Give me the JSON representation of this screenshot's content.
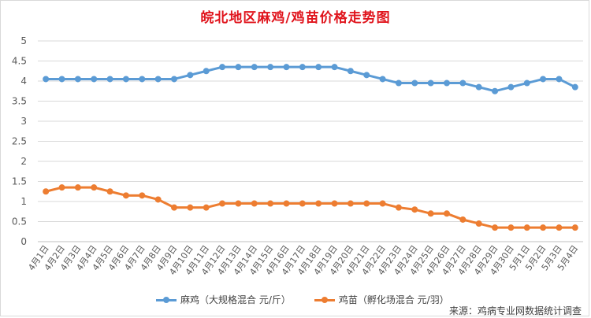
{
  "chart_data": {
    "type": "line",
    "title": "皖北地区麻鸡/鸡苗价格走势图",
    "categories": [
      "4月1日",
      "4月2日",
      "4月3日",
      "4月4日",
      "4月5日",
      "4月6日",
      "4月7日",
      "4月8日",
      "4月9日",
      "4月10日",
      "4月11日",
      "4月12日",
      "4月13日",
      "4月14日",
      "4月15日",
      "4月16日",
      "4月17日",
      "4月18日",
      "4月19日",
      "4月20日",
      "4月21日",
      "4月22日",
      "4月23日",
      "4月24日",
      "4月25日",
      "4月26日",
      "4月27日",
      "4月28日",
      "4月29日",
      "4月30日",
      "5月1日",
      "5月2日",
      "5月3日",
      "5月4日"
    ],
    "y_ticks": [
      "0",
      "0.5",
      "1",
      "1.5",
      "2",
      "2.5",
      "3",
      "3.5",
      "4",
      "4.5",
      "5"
    ],
    "ylim": [
      0,
      5
    ],
    "grid": true,
    "legend_position": "bottom",
    "series": [
      {
        "name": "麻鸡（大规格混合 元/斤）",
        "color": "#5b9bd5",
        "values": [
          4.05,
          4.05,
          4.05,
          4.05,
          4.05,
          4.05,
          4.05,
          4.05,
          4.05,
          4.15,
          4.25,
          4.35,
          4.35,
          4.35,
          4.35,
          4.35,
          4.35,
          4.35,
          4.35,
          4.25,
          4.15,
          4.05,
          3.95,
          3.95,
          3.95,
          3.95,
          3.95,
          3.85,
          3.75,
          3.85,
          3.95,
          4.05,
          4.05,
          3.85
        ]
      },
      {
        "name": "鸡苗（孵化场混合 元/羽）",
        "color": "#ed7d31",
        "values": [
          1.25,
          1.35,
          1.35,
          1.35,
          1.25,
          1.15,
          1.15,
          1.05,
          0.85,
          0.85,
          0.85,
          0.95,
          0.95,
          0.95,
          0.95,
          0.95,
          0.95,
          0.95,
          0.95,
          0.95,
          0.95,
          0.95,
          0.85,
          0.8,
          0.7,
          0.7,
          0.55,
          0.45,
          0.35,
          0.35,
          0.35,
          0.35,
          0.35,
          0.35
        ]
      }
    ]
  },
  "source_text": "来源：鸡病专业网数据统计调查"
}
